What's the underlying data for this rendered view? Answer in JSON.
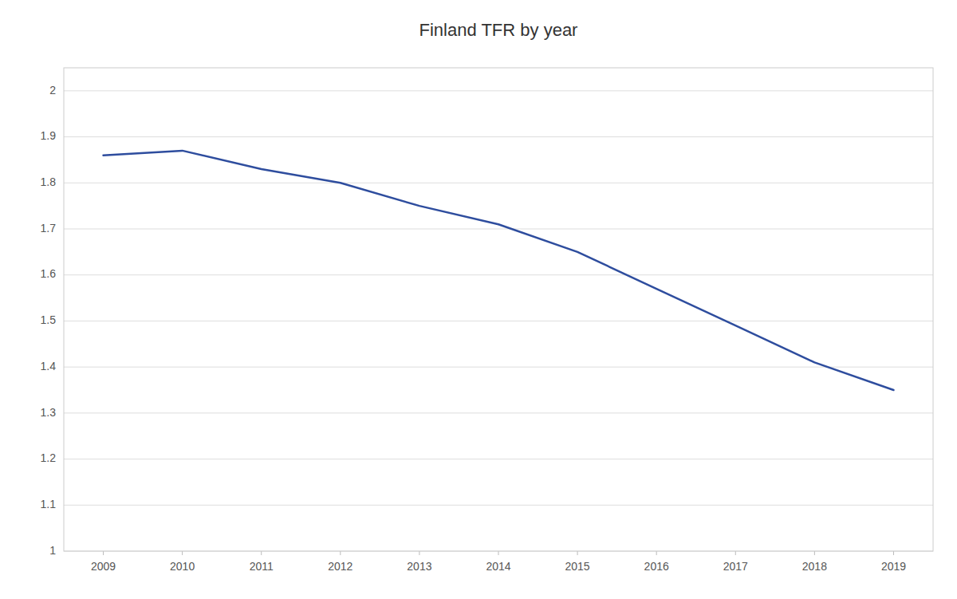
{
  "chart_data": {
    "type": "line",
    "title": "Finland TFR by year",
    "x": [
      2009,
      2010,
      2011,
      2012,
      2013,
      2014,
      2015,
      2016,
      2017,
      2018,
      2019
    ],
    "values": [
      1.86,
      1.87,
      1.83,
      1.8,
      1.75,
      1.71,
      1.65,
      1.57,
      1.49,
      1.41,
      1.35
    ],
    "color": "#2E4D9E",
    "xlim": [
      2008.5,
      2019.5
    ],
    "xticks": [
      2009,
      2010,
      2011,
      2012,
      2013,
      2014,
      2015,
      2016,
      2017,
      2018,
      2019
    ],
    "ylim": [
      1.0,
      2.05
    ],
    "yticks": [
      1,
      1.1,
      1.2,
      1.3,
      1.4,
      1.5,
      1.6,
      1.7,
      1.8,
      1.9,
      2
    ],
    "grid": true
  }
}
